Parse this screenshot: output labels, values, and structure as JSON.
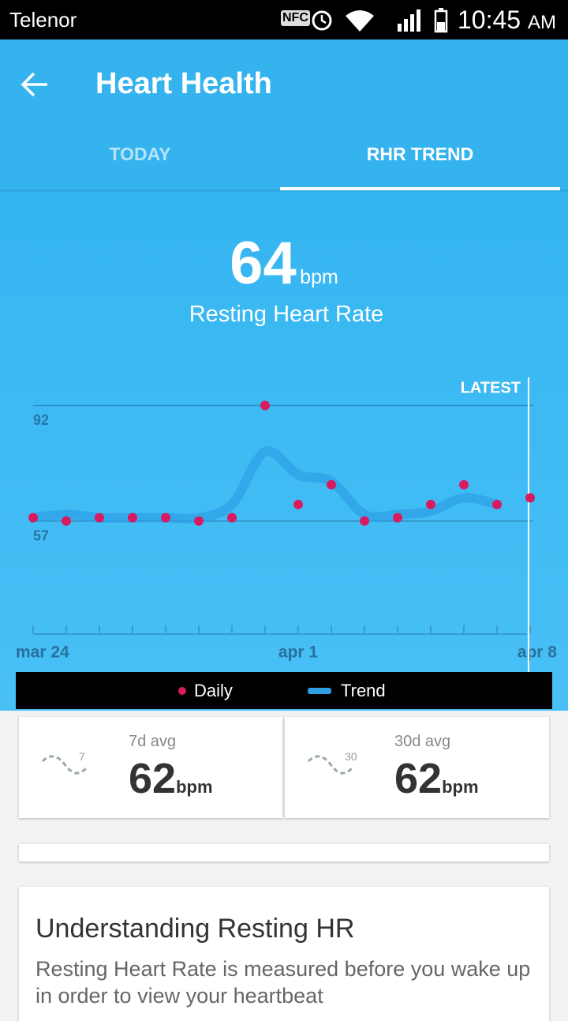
{
  "status_bar": {
    "carrier": "Telenor",
    "nfc": "NFC",
    "time": "10:45",
    "ampm": "AM"
  },
  "header": {
    "title": "Heart Health"
  },
  "tabs": [
    "TODAY",
    "RHR TREND"
  ],
  "summary": {
    "value": 64,
    "unit": "bpm",
    "label": "Resting Heart Rate"
  },
  "chart_data": {
    "type": "line",
    "annotation": "LATEST",
    "categories": [
      "mar 24",
      null,
      null,
      null,
      null,
      null,
      null,
      null,
      "apr 1",
      null,
      null,
      null,
      null,
      null,
      null,
      "apr 8"
    ],
    "series": [
      {
        "name": "Daily",
        "color": "#d81b60",
        "mark": "dots",
        "values": [
          58,
          57,
          58,
          58,
          58,
          57,
          58,
          92,
          62,
          68,
          57,
          58,
          62,
          68,
          62,
          64
        ]
      },
      {
        "name": "Trend",
        "color": "#2c9fe5",
        "mark": "line",
        "values": [
          58,
          59,
          58,
          58,
          58,
          58,
          62,
          78,
          71,
          69,
          59,
          59,
          60,
          64,
          62,
          null
        ]
      }
    ],
    "ylim": [
      23,
      100
    ],
    "yticks": [
      57,
      92
    ],
    "grid": true,
    "legend": "bottom"
  },
  "stats": [
    {
      "icon": "7",
      "label": "7d avg",
      "value": "62",
      "unit": "bpm"
    },
    {
      "icon": "30",
      "label": "30d avg",
      "value": "62",
      "unit": "bpm"
    }
  ],
  "info": {
    "title": "Understanding Resting HR",
    "text": "Resting Heart Rate is measured before you wake up in order to view your heartbeat"
  }
}
